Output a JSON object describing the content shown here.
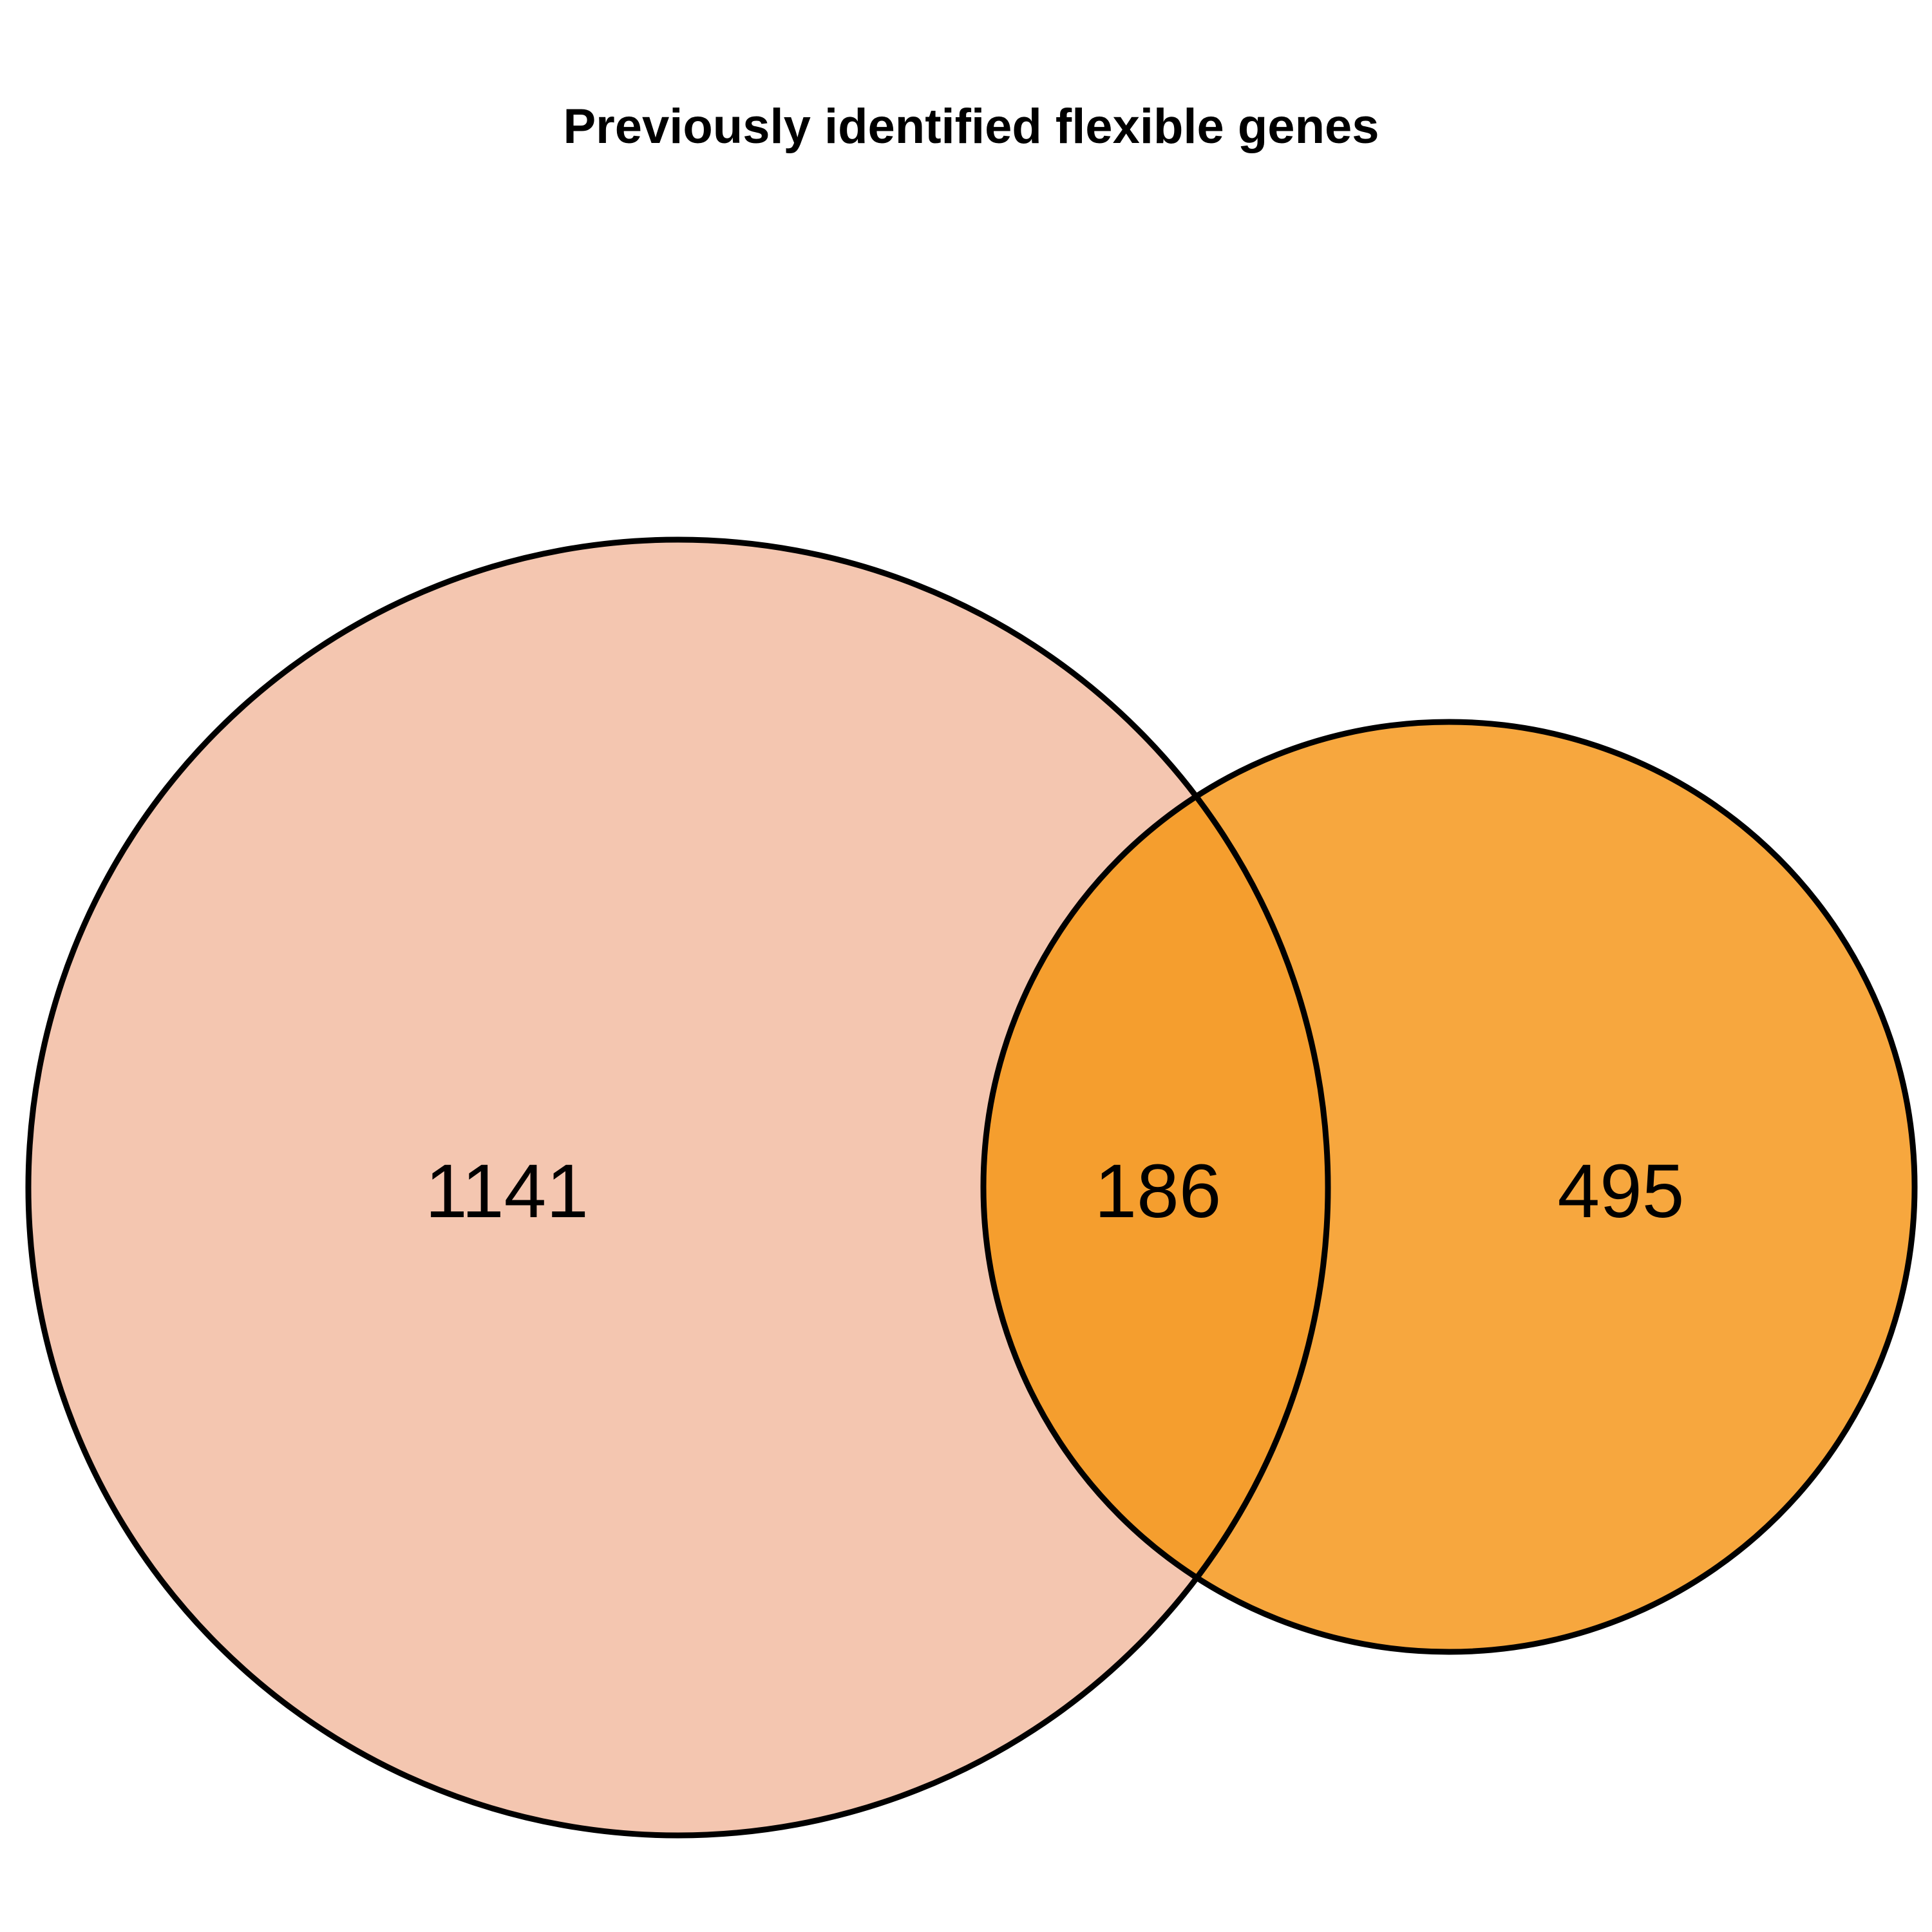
{
  "title": "Previously identified flexible genes",
  "sets": {
    "left": {
      "only_count": "1141",
      "fill": "#F4C6B0"
    },
    "right": {
      "only_count": "495",
      "fill": "#F7A73E"
    },
    "overlap": {
      "count": "186",
      "fill": "#F59E2E"
    }
  },
  "outline_color": "#000000"
}
